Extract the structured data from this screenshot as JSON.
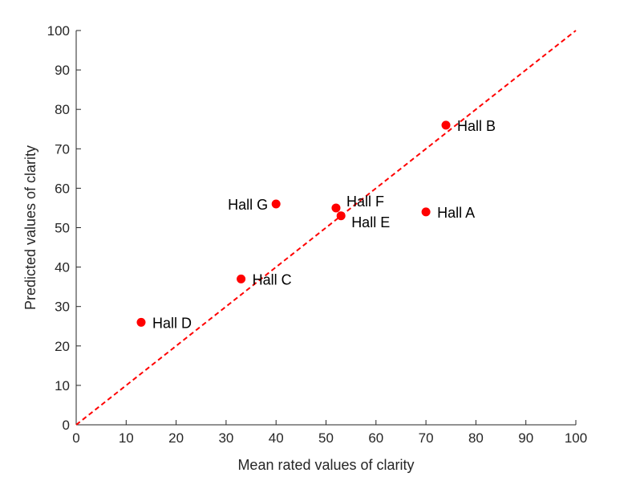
{
  "chart_data": {
    "type": "scatter",
    "title": "",
    "xlabel": "Mean rated values of clarity",
    "ylabel": "Predicted values of clarity",
    "xlim": [
      0,
      100
    ],
    "ylim": [
      0,
      100
    ],
    "x_ticks": [
      0,
      10,
      20,
      30,
      40,
      50,
      60,
      70,
      80,
      90,
      100
    ],
    "y_ticks": [
      0,
      10,
      20,
      30,
      40,
      50,
      60,
      70,
      80,
      90,
      100
    ],
    "grid": false,
    "point_color": "#ff0000",
    "reference_line": {
      "style": "dashed",
      "color": "#ff0000",
      "from": [
        0,
        0
      ],
      "to": [
        100,
        100
      ]
    },
    "points": [
      {
        "label": "Hall A",
        "x": 70,
        "y": 54,
        "label_side": "right"
      },
      {
        "label": "Hall B",
        "x": 74,
        "y": 76,
        "label_side": "right"
      },
      {
        "label": "Hall C",
        "x": 33,
        "y": 37,
        "label_side": "right"
      },
      {
        "label": "Hall D",
        "x": 13,
        "y": 26,
        "label_side": "right"
      },
      {
        "label": "Hall E",
        "x": 53,
        "y": 53,
        "label_side": "right-below"
      },
      {
        "label": "Hall F",
        "x": 52,
        "y": 55,
        "label_side": "right-above"
      },
      {
        "label": "Hall G",
        "x": 40,
        "y": 56,
        "label_side": "left"
      }
    ]
  }
}
